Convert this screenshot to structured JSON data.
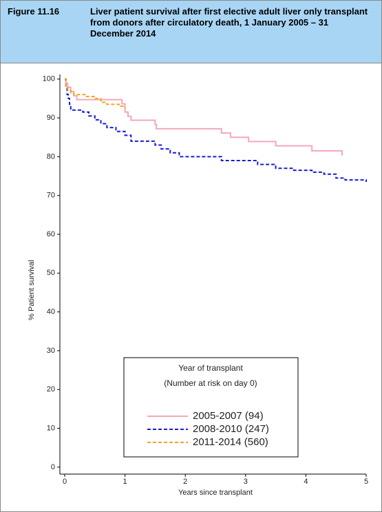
{
  "figure_label": "Figure 11.16",
  "chart_data": {
    "type": "step-line",
    "title": "Liver patient survival after first elective adult liver only transplant from donors after circulatory death, 1 January 2005 – 31 December 2014",
    "xlabel": "Years since transplant",
    "ylabel": "% Patient survival",
    "legend_title": "Year of transplant",
    "legend_subtitle": "(Number at risk on day 0)",
    "xlim": [
      -0.08,
      5.0
    ],
    "ylim": [
      -1.8,
      101.2
    ],
    "xticks": [
      0,
      1,
      2,
      3,
      4,
      5
    ],
    "yticks": [
      0,
      10,
      20,
      30,
      40,
      50,
      60,
      70,
      80,
      90,
      100
    ],
    "series": [
      {
        "name": "2005-2007 (94)",
        "color": "#f4a7b9",
        "dash": false,
        "x": [
          0,
          0.02,
          0.05,
          0.1,
          0.15,
          0.2,
          0.95,
          1.0,
          1.05,
          1.1,
          1.5,
          1.52,
          2.6,
          2.75,
          3.05,
          3.5,
          4.1,
          4.6
        ],
        "values": [
          100,
          98.9,
          97.9,
          96.8,
          95.7,
          94.7,
          93.6,
          91.5,
          90.4,
          89.4,
          88.3,
          87.2,
          86.1,
          85.0,
          83.9,
          82.8,
          81.5,
          80.3
        ]
      },
      {
        "name": "2008-2010 (247)",
        "color": "#1a1ad6",
        "dash": true,
        "x": [
          0,
          0.02,
          0.04,
          0.06,
          0.08,
          0.1,
          0.3,
          0.4,
          0.5,
          0.6,
          0.7,
          0.85,
          1.0,
          1.1,
          1.5,
          1.6,
          1.75,
          1.9,
          2.6,
          3.2,
          3.5,
          3.8,
          4.1,
          4.3,
          4.5,
          4.65,
          5.0
        ],
        "values": [
          100,
          98,
          96,
          95,
          93.5,
          92,
          91.5,
          90.5,
          89.5,
          88.5,
          87.5,
          86.5,
          85.5,
          84,
          83,
          82,
          81,
          80,
          79,
          78,
          77,
          76.5,
          76,
          75.5,
          74.5,
          74,
          73.5
        ]
      },
      {
        "name": "2011-2014 (560)",
        "color": "#f2a31c",
        "dash": true,
        "x": [
          0,
          0.02,
          0.05,
          0.1,
          0.15,
          0.35,
          0.5,
          0.6,
          0.7,
          0.9,
          1.0
        ],
        "values": [
          100,
          98,
          97,
          96.5,
          96,
          95.5,
          95,
          94,
          93.5,
          93,
          92.5
        ]
      }
    ]
  }
}
